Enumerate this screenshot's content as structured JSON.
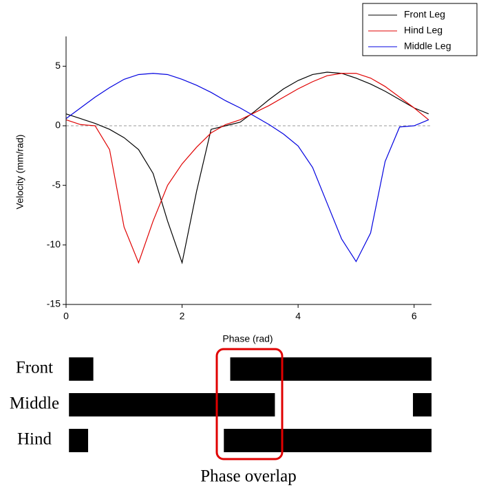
{
  "chart_data": [
    {
      "type": "line",
      "x_label": "Phase (rad)",
      "y_label": "Velocity (mm/rad)",
      "x": [
        0,
        0.25,
        0.5,
        0.75,
        1.0,
        1.25,
        1.5,
        1.75,
        2.0,
        2.25,
        2.5,
        2.75,
        3.0,
        3.25,
        3.5,
        3.75,
        4.0,
        4.25,
        4.5,
        4.75,
        5.0,
        5.25,
        5.5,
        5.75,
        6.0,
        6.25
      ],
      "series": [
        {
          "name": "Front Leg",
          "color": "#000000",
          "values": [
            1.0,
            0.6,
            0.2,
            -0.3,
            -1.0,
            -2.0,
            -4.0,
            -8.0,
            -11.5,
            -5.5,
            -0.3,
            0,
            0.3,
            1.2,
            2.2,
            3.1,
            3.8,
            4.3,
            4.5,
            4.4,
            4.0,
            3.5,
            2.9,
            2.2,
            1.5,
            1.0
          ]
        },
        {
          "name": "Hind Leg",
          "color": "#e00000",
          "values": [
            0.5,
            0.1,
            0,
            -2.0,
            -8.5,
            -11.5,
            -8.0,
            -5.0,
            -3.2,
            -1.8,
            -0.6,
            0.1,
            0.5,
            1.1,
            1.7,
            2.4,
            3.1,
            3.7,
            4.2,
            4.4,
            4.4,
            4.0,
            3.3,
            2.4,
            1.5,
            0.5
          ]
        },
        {
          "name": "Middle Leg",
          "color": "#0000e0",
          "values": [
            0.6,
            1.5,
            2.4,
            3.2,
            3.9,
            4.3,
            4.4,
            4.3,
            3.9,
            3.4,
            2.8,
            2.1,
            1.5,
            0.8,
            0.1,
            -0.7,
            -1.7,
            -3.5,
            -6.5,
            -9.5,
            -11.4,
            -9.0,
            -3.0,
            -0.1,
            0,
            0.5
          ]
        }
      ],
      "xlim": [
        0,
        6.3
      ],
      "ylim": [
        -15,
        7.5
      ],
      "xticks": [
        0,
        2,
        4,
        6
      ],
      "yticks": [
        -15,
        -10,
        -5,
        0,
        5
      ],
      "zero_line": true,
      "legend": "top-right"
    },
    {
      "type": "broken_barh",
      "categories": [
        "Front",
        "Middle",
        "Hind"
      ],
      "values": [
        [
          [
            0.05,
            0.47
          ],
          [
            2.83,
            6.3
          ]
        ],
        [
          [
            0.05,
            3.6
          ],
          [
            5.98,
            6.3
          ]
        ],
        [
          [
            0.05,
            0.38
          ],
          [
            2.72,
            6.3
          ]
        ]
      ],
      "color": "#000000",
      "xlim": [
        0,
        6.3
      ],
      "annotation": "Phase overlap",
      "annotation_color": "#e00000"
    }
  ]
}
